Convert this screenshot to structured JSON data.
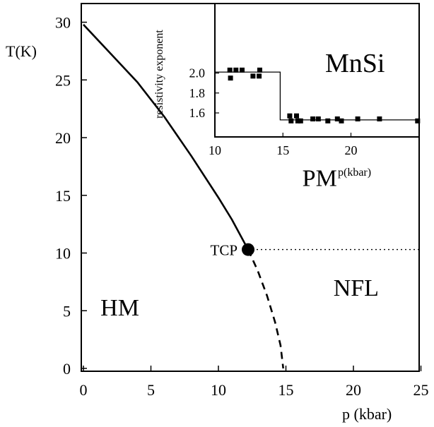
{
  "chart_data": [
    {
      "type": "line",
      "xlabel": "p (kbar)",
      "ylabel": "T(K)",
      "xlim": [
        0,
        25
      ],
      "ylim": [
        0,
        30
      ],
      "xticks": [
        "0",
        "5",
        "10",
        "15",
        "20",
        "25"
      ],
      "yticks": [
        "0",
        "5",
        "10",
        "15",
        "20",
        "25",
        "30"
      ],
      "grid": false,
      "series": [
        {
          "style": "solid",
          "x": [
            0,
            2,
            4,
            6,
            8,
            10,
            11,
            12.2
          ],
          "y": [
            29.8,
            27.3,
            24.8,
            21.8,
            18.4,
            14.8,
            12.9,
            10.3
          ]
        },
        {
          "style": "dashed",
          "x": [
            12.2,
            12.9,
            13.6,
            14.2,
            14.6,
            14.8
          ],
          "y": [
            10.3,
            8.5,
            6.3,
            4.0,
            2.0,
            0
          ]
        },
        {
          "style": "dotted",
          "x": [
            12.2,
            25
          ],
          "y": [
            10.3,
            10.3
          ]
        }
      ],
      "points": [
        {
          "label": "TCP",
          "x": 12.2,
          "y": 10.3
        }
      ],
      "regions": [
        {
          "label": "PM",
          "x": 17.5,
          "y": 15.8
        },
        {
          "label": "HM",
          "x": 2.7,
          "y": 4.6
        },
        {
          "label": "NFL",
          "x": 20.2,
          "y": 6.3
        }
      ]
    },
    {
      "type": "scatter",
      "title": "MnSi",
      "xlabel": "p(kbar)",
      "ylabel": "resistivity exponent",
      "xlim": [
        10,
        25
      ],
      "ylim": [
        1.4,
        2.15
      ],
      "xticks": [
        "10",
        "15",
        "20"
      ],
      "yticks": [
        "1.6",
        "1.8",
        "2.0"
      ],
      "series": [
        {
          "style": "markers",
          "x": [
            11.1,
            11.15,
            11.55,
            12.0,
            12.8,
            13.25,
            13.3,
            15.5,
            15.6,
            16.0,
            16.1,
            16.3,
            17.2,
            17.6,
            18.3,
            19.0,
            19.3,
            20.5,
            22.1,
            24.9
          ],
          "y": [
            2.03,
            1.95,
            2.03,
            2.03,
            1.97,
            1.97,
            2.03,
            1.57,
            1.52,
            1.57,
            1.52,
            1.52,
            1.54,
            1.54,
            1.52,
            1.54,
            1.52,
            1.54,
            1.54,
            1.52
          ]
        },
        {
          "style": "step",
          "x": [
            10,
            14.8,
            14.8,
            25
          ],
          "y": [
            2.01,
            2.01,
            1.53,
            1.53
          ]
        }
      ]
    }
  ]
}
